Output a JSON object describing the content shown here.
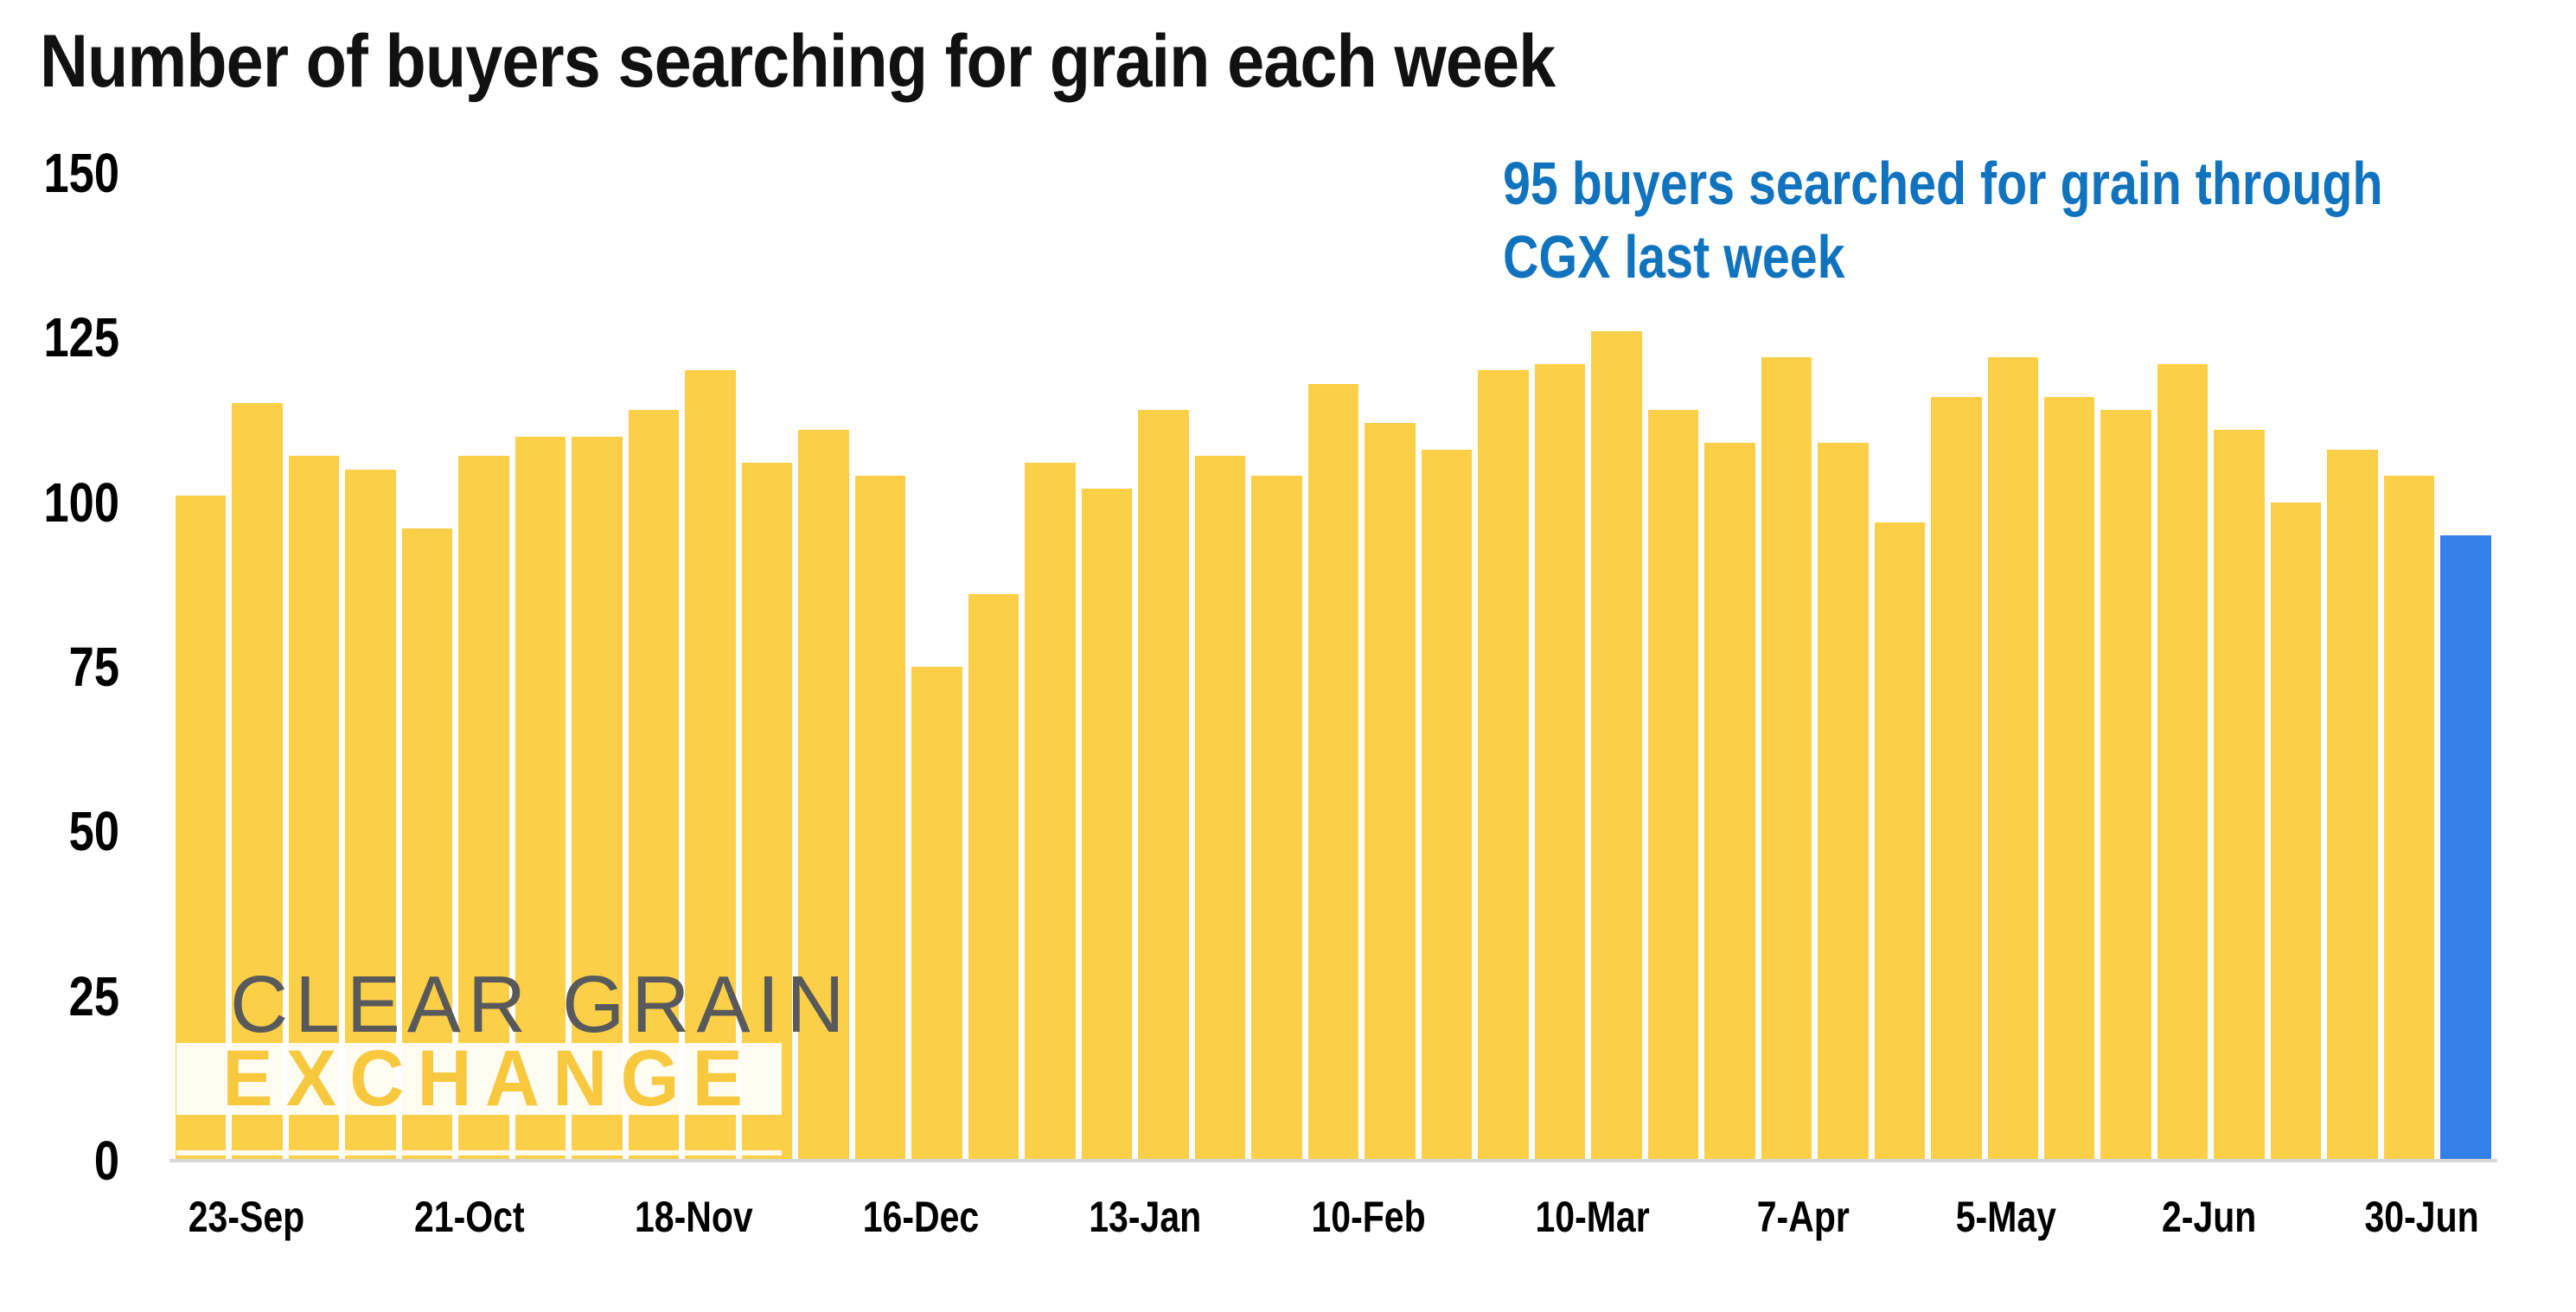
{
  "title": "Number of buyers searching for grain each week",
  "annotation": {
    "line1": "95 buyers searched for grain through",
    "line2": "CGX last week"
  },
  "watermark": {
    "line1": "CLEAR GRAIN",
    "line2": "EXCHANGE"
  },
  "colors": {
    "bar": "#FBCF47",
    "highlight_bar": "#3380E8",
    "annotation_text": "#1173BE",
    "title_text": "#111111",
    "axis_label": "#000000",
    "watermark_gray": "#58595B",
    "watermark_yellow": "#F8C93F",
    "baseline": "#D8D8D8"
  },
  "chart_data": {
    "type": "bar",
    "title": "Number of buyers searching for grain each week",
    "values": [
      101,
      115,
      107,
      105,
      96,
      107,
      110,
      110,
      114,
      120,
      106,
      111,
      104,
      75,
      86,
      106,
      102,
      114,
      107,
      104,
      118,
      112,
      108,
      120,
      121,
      126,
      114,
      109,
      122,
      109,
      97,
      116,
      122,
      116,
      114,
      121,
      111,
      100,
      108,
      104,
      95
    ],
    "highlight_index": 40,
    "highlight_value": 95,
    "tick_labels": [
      "23-Sep",
      "21-Oct",
      "18-Nov",
      "16-Dec",
      "13-Jan",
      "10-Feb",
      "10-Mar",
      "7-Apr",
      "5-May",
      "2-Jun",
      "30-Jun"
    ],
    "tick_every": 4,
    "xlabel": "",
    "ylabel": "",
    "ylim": [
      0,
      150
    ],
    "yticks": [
      0,
      25,
      50,
      75,
      100,
      125,
      150
    ],
    "grid": false,
    "legend": false
  }
}
